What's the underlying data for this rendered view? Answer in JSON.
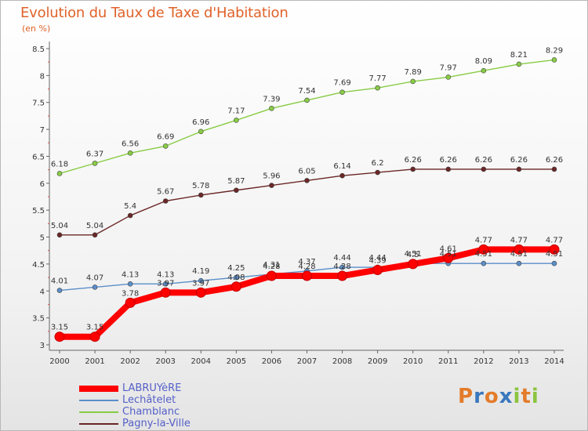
{
  "chart_data": {
    "type": "line",
    "title": "Evolution du Taux de Taxe d'Habitation",
    "unit": "(en %)",
    "categories": [
      "2000",
      "2001",
      "2002",
      "2003",
      "2004",
      "2005",
      "2006",
      "2007",
      "2008",
      "2009",
      "2010",
      "2011",
      "2012",
      "2013",
      "2014"
    ],
    "ylim": [
      3,
      8.5
    ],
    "yticks": [
      "3",
      "3.5",
      "4",
      "4.5",
      "5",
      "5.5",
      "6",
      "6.5",
      "7",
      "7.5",
      "8",
      "8.5"
    ],
    "grid": false,
    "series": [
      {
        "name": "LABRUYèRE",
        "color": "#ff0000",
        "values": [
          3.15,
          3.15,
          3.78,
          3.97,
          3.97,
          4.08,
          4.28,
          4.28,
          4.28,
          4.39,
          4.5,
          4.61,
          4.77,
          4.77,
          4.77
        ],
        "labels": [
          "3.15",
          "3.15",
          "3.78",
          "3.97",
          "3.97",
          "4.08",
          "4.28",
          "4.28",
          "4.28",
          "4.39",
          "4.5",
          "4.61",
          "4.77",
          "4.77",
          "4.77"
        ]
      },
      {
        "name": "Lechâtelet",
        "color": "#5b8ec9",
        "values": [
          4.01,
          4.07,
          4.13,
          4.13,
          4.19,
          4.25,
          4.31,
          4.37,
          4.44,
          4.44,
          4.51,
          4.51,
          4.51,
          4.51,
          4.51
        ],
        "labels": [
          "4.01",
          "4.07",
          "4.13",
          "4.13",
          "4.19",
          "4.25",
          "4.31",
          "4.37",
          "4.44",
          "4.44",
          "4.51",
          "4.51",
          "4.51",
          "4.51",
          "4.51"
        ]
      },
      {
        "name": "Chamblanc",
        "color": "#88cc44",
        "values": [
          6.18,
          6.37,
          6.56,
          6.69,
          6.96,
          7.17,
          7.39,
          7.54,
          7.69,
          7.77,
          7.89,
          7.97,
          8.09,
          8.21,
          8.29
        ],
        "labels": [
          "6.18",
          "6.37",
          "6.56",
          "6.69",
          "6.96",
          "7.17",
          "7.39",
          "7.54",
          "7.69",
          "7.77",
          "7.89",
          "7.97",
          "8.09",
          "8.21",
          "8.29"
        ]
      },
      {
        "name": "Pagny-la-Ville",
        "color": "#6b2626",
        "values": [
          5.04,
          5.04,
          5.4,
          5.67,
          5.78,
          5.87,
          5.96,
          6.05,
          6.14,
          6.2,
          6.26,
          6.26,
          6.26,
          6.26,
          6.26
        ],
        "labels": [
          "5.04",
          "5.04",
          "5.4",
          "5.67",
          "5.78",
          "5.87",
          "5.96",
          "6.05",
          "6.14",
          "6.2",
          "6.26",
          "6.26",
          "6.26",
          "6.26",
          "6.26"
        ]
      }
    ]
  },
  "logo": {
    "text": "Proxiti",
    "letters": [
      "P",
      "r",
      "o",
      "x",
      "i",
      "t",
      "i"
    ],
    "colors": [
      "#e37b2a",
      "#3a77bd",
      "#e37b2a",
      "#3a77bd",
      "#8cc43f",
      "#e37b2a",
      "#8cc43f"
    ]
  }
}
